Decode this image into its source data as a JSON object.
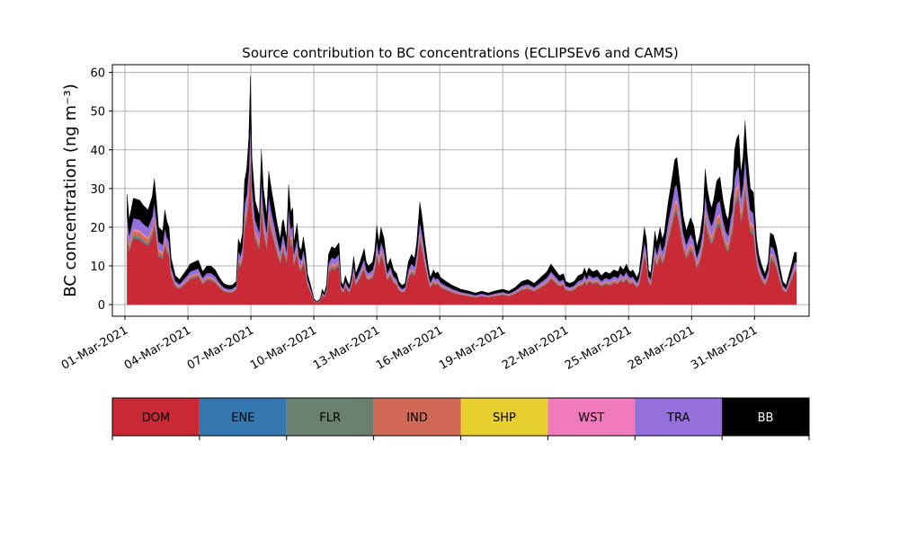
{
  "chart_data": {
    "type": "area",
    "stacked": true,
    "title": "Source contribution to BC concentrations (ECLIPSEv6 and CAMS)",
    "ylabel": "BC concentration (ng m⁻³)",
    "xlabel": "",
    "x_start": "2021-03-01",
    "x_step_days": 0.25,
    "xlim_days": [
      -0.6,
      32.6
    ],
    "ylim": [
      -3,
      62
    ],
    "yticks": [
      0,
      10,
      20,
      30,
      40,
      50,
      60
    ],
    "xticks": [
      {
        "day": 0,
        "label": "01-Mar-2021"
      },
      {
        "day": 3,
        "label": "04-Mar-2021"
      },
      {
        "day": 6,
        "label": "07-Mar-2021"
      },
      {
        "day": 9,
        "label": "10-Mar-2021"
      },
      {
        "day": 12,
        "label": "13-Mar-2021"
      },
      {
        "day": 15,
        "label": "16-Mar-2021"
      },
      {
        "day": 18,
        "label": "19-Mar-2021"
      },
      {
        "day": 21,
        "label": "22-Mar-2021"
      },
      {
        "day": 24,
        "label": "25-Mar-2021"
      },
      {
        "day": 27,
        "label": "28-Mar-2021"
      },
      {
        "day": 30,
        "label": "31-Mar-2021"
      }
    ],
    "grid": true,
    "total_anchors": [
      [
        0.1,
        28.5
      ],
      [
        0.2,
        22
      ],
      [
        0.4,
        27.5
      ],
      [
        0.7,
        27
      ],
      [
        0.9,
        25.5
      ],
      [
        1.1,
        24.5
      ],
      [
        1.3,
        28
      ],
      [
        1.4,
        32.5
      ],
      [
        1.5,
        27
      ],
      [
        1.6,
        20
      ],
      [
        1.8,
        19
      ],
      [
        1.9,
        24.5
      ],
      [
        2.0,
        21.5
      ],
      [
        2.1,
        20
      ],
      [
        2.2,
        12
      ],
      [
        2.4,
        7.5
      ],
      [
        2.6,
        6.5
      ],
      [
        2.8,
        8
      ],
      [
        3.0,
        9.5
      ],
      [
        3.1,
        10.5
      ],
      [
        3.3,
        11
      ],
      [
        3.5,
        11.5
      ],
      [
        3.7,
        8.5
      ],
      [
        3.9,
        10
      ],
      [
        4.1,
        10
      ],
      [
        4.3,
        9
      ],
      [
        4.5,
        7
      ],
      [
        4.7,
        5.5
      ],
      [
        4.9,
        5
      ],
      [
        5.1,
        5
      ],
      [
        5.3,
        6
      ],
      [
        5.4,
        17
      ],
      [
        5.5,
        15.5
      ],
      [
        5.6,
        18.5
      ],
      [
        5.7,
        32
      ],
      [
        5.8,
        35
      ],
      [
        5.9,
        43
      ],
      [
        5.98,
        59
      ],
      [
        6.05,
        38
      ],
      [
        6.2,
        27
      ],
      [
        6.4,
        23
      ],
      [
        6.5,
        40
      ],
      [
        6.6,
        30
      ],
      [
        6.75,
        23
      ],
      [
        6.85,
        34.5
      ],
      [
        7.0,
        29
      ],
      [
        7.1,
        26
      ],
      [
        7.25,
        21
      ],
      [
        7.4,
        17
      ],
      [
        7.5,
        21.5
      ],
      [
        7.55,
        22
      ],
      [
        7.7,
        17
      ],
      [
        7.8,
        31
      ],
      [
        7.9,
        24
      ],
      [
        8.0,
        25
      ],
      [
        8.05,
        16
      ],
      [
        8.2,
        21
      ],
      [
        8.3,
        15
      ],
      [
        8.4,
        14
      ],
      [
        8.5,
        17.5
      ],
      [
        8.6,
        14
      ],
      [
        8.7,
        8
      ],
      [
        8.9,
        4
      ],
      [
        9.0,
        1.5
      ],
      [
        9.15,
        0.8
      ],
      [
        9.3,
        1.5
      ],
      [
        9.4,
        4
      ],
      [
        9.5,
        3
      ],
      [
        9.6,
        5
      ],
      [
        9.7,
        13
      ],
      [
        9.85,
        15
      ],
      [
        10.0,
        14.5
      ],
      [
        10.2,
        16
      ],
      [
        10.3,
        6
      ],
      [
        10.4,
        5
      ],
      [
        10.5,
        7.5
      ],
      [
        10.6,
        6
      ],
      [
        10.7,
        5
      ],
      [
        10.8,
        8
      ],
      [
        10.9,
        12.5
      ],
      [
        11.0,
        8
      ],
      [
        11.2,
        11
      ],
      [
        11.4,
        14.5
      ],
      [
        11.5,
        11
      ],
      [
        11.6,
        10
      ],
      [
        11.8,
        11
      ],
      [
        11.9,
        14
      ],
      [
        12.0,
        20.5
      ],
      [
        12.1,
        16
      ],
      [
        12.2,
        20
      ],
      [
        12.35,
        17
      ],
      [
        12.5,
        10
      ],
      [
        12.65,
        12
      ],
      [
        12.8,
        9
      ],
      [
        12.95,
        8
      ],
      [
        13.05,
        6
      ],
      [
        13.2,
        5
      ],
      [
        13.35,
        5.5
      ],
      [
        13.5,
        11
      ],
      [
        13.65,
        13
      ],
      [
        13.8,
        12
      ],
      [
        13.9,
        16
      ],
      [
        14.05,
        26.5
      ],
      [
        14.15,
        23
      ],
      [
        14.3,
        16
      ],
      [
        14.45,
        10
      ],
      [
        14.55,
        7
      ],
      [
        14.7,
        9
      ],
      [
        14.8,
        8
      ],
      [
        14.9,
        8.5
      ],
      [
        15.05,
        7
      ],
      [
        15.3,
        6
      ],
      [
        15.6,
        5
      ],
      [
        16.0,
        4
      ],
      [
        16.4,
        3.5
      ],
      [
        16.7,
        3
      ],
      [
        17.0,
        3.5
      ],
      [
        17.3,
        3
      ],
      [
        17.6,
        3.5
      ],
      [
        18.0,
        4
      ],
      [
        18.3,
        3.5
      ],
      [
        18.6,
        4.5
      ],
      [
        18.9,
        6
      ],
      [
        19.2,
        6.5
      ],
      [
        19.5,
        5.5
      ],
      [
        19.8,
        7
      ],
      [
        20.1,
        8.5
      ],
      [
        20.3,
        10.5
      ],
      [
        20.5,
        9
      ],
      [
        20.7,
        7.5
      ],
      [
        20.9,
        8
      ],
      [
        21.0,
        6
      ],
      [
        21.2,
        5.5
      ],
      [
        21.4,
        6
      ],
      [
        21.6,
        7.5
      ],
      [
        21.8,
        8
      ],
      [
        21.9,
        9.5
      ],
      [
        22.0,
        8
      ],
      [
        22.1,
        9.5
      ],
      [
        22.3,
        8.5
      ],
      [
        22.5,
        9
      ],
      [
        22.7,
        7.5
      ],
      [
        22.9,
        8.5
      ],
      [
        23.1,
        8
      ],
      [
        23.3,
        9
      ],
      [
        23.5,
        8.5
      ],
      [
        23.6,
        10
      ],
      [
        23.75,
        9
      ],
      [
        23.9,
        10.5
      ],
      [
        24.0,
        9
      ],
      [
        24.1,
        8.5
      ],
      [
        24.2,
        9
      ],
      [
        24.4,
        7
      ],
      [
        24.5,
        8.5
      ],
      [
        24.65,
        15
      ],
      [
        24.75,
        20
      ],
      [
        24.85,
        17
      ],
      [
        24.95,
        9
      ],
      [
        25.05,
        8
      ],
      [
        25.15,
        13
      ],
      [
        25.25,
        19
      ],
      [
        25.35,
        16
      ],
      [
        25.5,
        20
      ],
      [
        25.6,
        17
      ],
      [
        25.7,
        18.5
      ],
      [
        25.8,
        23
      ],
      [
        25.9,
        27
      ],
      [
        26.05,
        32
      ],
      [
        26.2,
        37.5
      ],
      [
        26.3,
        38
      ],
      [
        26.45,
        31
      ],
      [
        26.6,
        23
      ],
      [
        26.75,
        19
      ],
      [
        26.95,
        22.5
      ],
      [
        27.1,
        20.5
      ],
      [
        27.25,
        15
      ],
      [
        27.4,
        18
      ],
      [
        27.55,
        24
      ],
      [
        27.65,
        35
      ],
      [
        27.75,
        30
      ],
      [
        27.85,
        27
      ],
      [
        27.95,
        25
      ],
      [
        28.05,
        27
      ],
      [
        28.2,
        32
      ],
      [
        28.35,
        33
      ],
      [
        28.5,
        27
      ],
      [
        28.65,
        23
      ],
      [
        28.75,
        22
      ],
      [
        28.85,
        27
      ],
      [
        28.95,
        30
      ],
      [
        29.05,
        40
      ],
      [
        29.15,
        43
      ],
      [
        29.25,
        44
      ],
      [
        29.35,
        34
      ],
      [
        29.45,
        38
      ],
      [
        29.55,
        47.5
      ],
      [
        29.65,
        39
      ],
      [
        29.8,
        30
      ],
      [
        29.95,
        29
      ],
      [
        30.1,
        17
      ],
      [
        30.2,
        13
      ],
      [
        30.35,
        10
      ],
      [
        30.5,
        8
      ],
      [
        30.65,
        11
      ],
      [
        30.75,
        18.5
      ],
      [
        30.9,
        18
      ],
      [
        31.05,
        15
      ],
      [
        31.2,
        10
      ],
      [
        31.35,
        6
      ],
      [
        31.5,
        5
      ],
      [
        31.6,
        7
      ],
      [
        31.75,
        10
      ],
      [
        31.9,
        13.5
      ],
      [
        32.0,
        13.5
      ]
    ],
    "series": [
      {
        "name": "DOM",
        "color": "#c92a36",
        "fraction_of_total": 0.62
      },
      {
        "name": "ENE",
        "color": "#3478b1",
        "fraction_of_total": 0.006
      },
      {
        "name": "FLR",
        "color": "#6b8070",
        "fraction_of_total": 0.022
      },
      {
        "name": "IND",
        "color": "#d06a57",
        "fraction_of_total": 0.045
      },
      {
        "name": "SHP",
        "color": "#e8cf30",
        "fraction_of_total": 0.004
      },
      {
        "name": "WST",
        "color": "#f07bbc",
        "fraction_of_total": 0.016
      },
      {
        "name": "TRA",
        "color": "#9370db",
        "fraction_of_total": 0.1
      },
      {
        "name": "BB",
        "color": "#000000",
        "fraction_of_total": "remainder"
      }
    ],
    "legend": {
      "placement": "bottom colorbar",
      "items": [
        {
          "label": "DOM",
          "color": "#c92a36",
          "text_color": "#000000"
        },
        {
          "label": "ENE",
          "color": "#3478b1",
          "text_color": "#000000"
        },
        {
          "label": "FLR",
          "color": "#6b8070",
          "text_color": "#000000"
        },
        {
          "label": "IND",
          "color": "#d06a57",
          "text_color": "#000000"
        },
        {
          "label": "SHP",
          "color": "#e8cf30",
          "text_color": "#000000"
        },
        {
          "label": "WST",
          "color": "#f07bbc",
          "text_color": "#000000"
        },
        {
          "label": "TRA",
          "color": "#9370db",
          "text_color": "#000000"
        },
        {
          "label": "BB",
          "color": "#000000",
          "text_color": "#ffffff"
        }
      ]
    }
  }
}
